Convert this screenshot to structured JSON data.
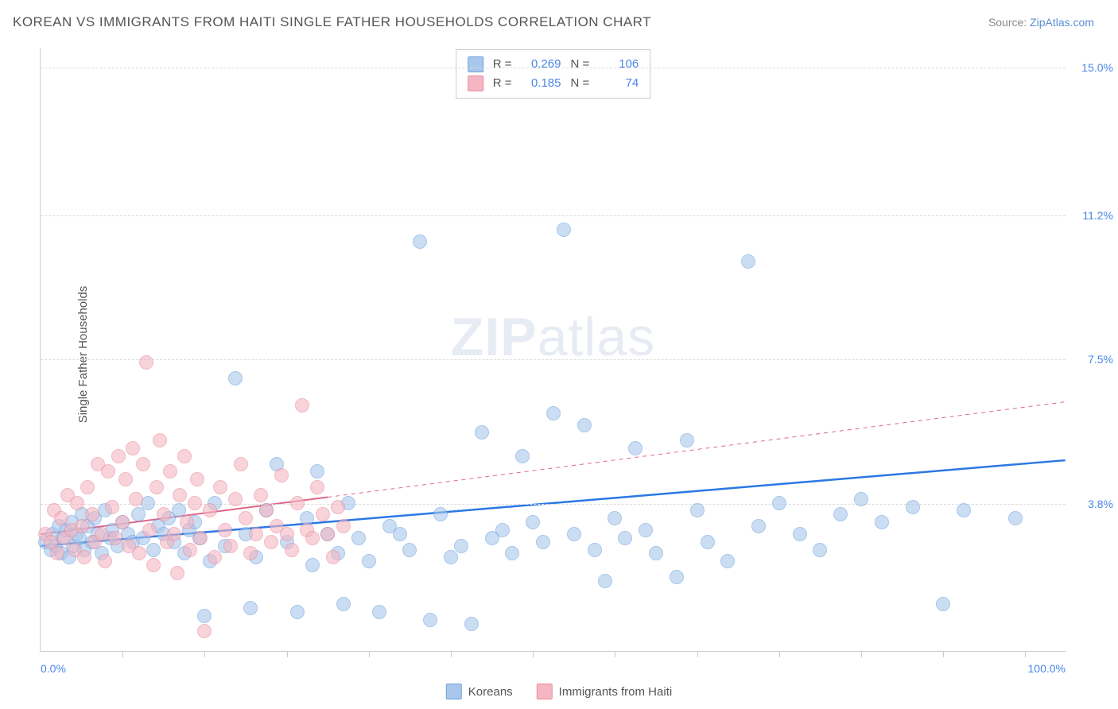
{
  "title": "KOREAN VS IMMIGRANTS FROM HAITI SINGLE FATHER HOUSEHOLDS CORRELATION CHART",
  "source_prefix": "Source: ",
  "source_link": "ZipAtlas.com",
  "ylabel": "Single Father Households",
  "watermark_zip": "ZIP",
  "watermark_atlas": "atlas",
  "chart": {
    "type": "scatter",
    "background_color": "#ffffff",
    "grid_color": "#dddddd",
    "xlim": [
      0,
      100
    ],
    "ylim": [
      0,
      15.5
    ],
    "x_min_label": "0.0%",
    "x_max_label": "100.0%",
    "xtick_positions": [
      8,
      16,
      24,
      32,
      40,
      48,
      56,
      64,
      72,
      80,
      88,
      96
    ],
    "yticks": [
      {
        "value": 3.8,
        "label": "3.8%"
      },
      {
        "value": 7.5,
        "label": "7.5%"
      },
      {
        "value": 11.2,
        "label": "11.2%"
      },
      {
        "value": 15.0,
        "label": "15.0%"
      }
    ],
    "ytick_color": "#4a86e8",
    "ytick_fontsize": 14,
    "marker_radius": 9,
    "marker_stroke_width": 1,
    "series": [
      {
        "name": "Koreans",
        "fill_color": "#a9c7ec",
        "stroke_color": "#6fa3dd",
        "fill_opacity": 0.6,
        "R_label": "R = ",
        "R_value": "0.269",
        "N_label": "N = ",
        "N_value": "106",
        "trend": {
          "x1": 0,
          "y1": 2.7,
          "x2": 100,
          "y2": 4.9,
          "color": "#2b78e4",
          "width": 2.5,
          "dash_after": 100
        },
        "points": [
          [
            0.5,
            2.8
          ],
          [
            1,
            2.6
          ],
          [
            1.2,
            3.0
          ],
          [
            1.5,
            2.7
          ],
          [
            1.8,
            3.2
          ],
          [
            2,
            2.5
          ],
          [
            2.2,
            2.9
          ],
          [
            2.5,
            3.1
          ],
          [
            2.8,
            2.4
          ],
          [
            3,
            3.3
          ],
          [
            3.2,
            2.7
          ],
          [
            3.5,
            3.0
          ],
          [
            3.8,
            2.9
          ],
          [
            4,
            3.5
          ],
          [
            4.3,
            2.6
          ],
          [
            4.6,
            3.2
          ],
          [
            5,
            2.8
          ],
          [
            5.3,
            3.4
          ],
          [
            5.6,
            3.0
          ],
          [
            6,
            2.5
          ],
          [
            6.3,
            3.6
          ],
          [
            6.8,
            2.9
          ],
          [
            7,
            3.1
          ],
          [
            7.5,
            2.7
          ],
          [
            8,
            3.3
          ],
          [
            8.5,
            3.0
          ],
          [
            9,
            2.8
          ],
          [
            9.5,
            3.5
          ],
          [
            10,
            2.9
          ],
          [
            10.5,
            3.8
          ],
          [
            11,
            2.6
          ],
          [
            11.5,
            3.2
          ],
          [
            12,
            3.0
          ],
          [
            12.5,
            3.4
          ],
          [
            13,
            2.8
          ],
          [
            13.5,
            3.6
          ],
          [
            14,
            2.5
          ],
          [
            14.5,
            3.1
          ],
          [
            15,
            3.3
          ],
          [
            15.5,
            2.9
          ],
          [
            16,
            0.9
          ],
          [
            16.5,
            2.3
          ],
          [
            17,
            3.8
          ],
          [
            18,
            2.7
          ],
          [
            19,
            7.0
          ],
          [
            20,
            3.0
          ],
          [
            20.5,
            1.1
          ],
          [
            21,
            2.4
          ],
          [
            22,
            3.6
          ],
          [
            23,
            4.8
          ],
          [
            24,
            2.8
          ],
          [
            25,
            1.0
          ],
          [
            26,
            3.4
          ],
          [
            26.5,
            2.2
          ],
          [
            27,
            4.6
          ],
          [
            28,
            3.0
          ],
          [
            29,
            2.5
          ],
          [
            29.5,
            1.2
          ],
          [
            30,
            3.8
          ],
          [
            31,
            2.9
          ],
          [
            32,
            2.3
          ],
          [
            33,
            1.0
          ],
          [
            34,
            3.2
          ],
          [
            35,
            3.0
          ],
          [
            36,
            2.6
          ],
          [
            37,
            10.5
          ],
          [
            38,
            0.8
          ],
          [
            39,
            3.5
          ],
          [
            40,
            2.4
          ],
          [
            41,
            2.7
          ],
          [
            42,
            0.7
          ],
          [
            43,
            5.6
          ],
          [
            44,
            2.9
          ],
          [
            45,
            3.1
          ],
          [
            46,
            2.5
          ],
          [
            47,
            5.0
          ],
          [
            48,
            3.3
          ],
          [
            49,
            2.8
          ],
          [
            50,
            6.1
          ],
          [
            51,
            10.8
          ],
          [
            52,
            3.0
          ],
          [
            53,
            5.8
          ],
          [
            54,
            2.6
          ],
          [
            55,
            1.8
          ],
          [
            56,
            3.4
          ],
          [
            57,
            2.9
          ],
          [
            58,
            5.2
          ],
          [
            59,
            3.1
          ],
          [
            60,
            2.5
          ],
          [
            62,
            1.9
          ],
          [
            63,
            5.4
          ],
          [
            64,
            3.6
          ],
          [
            65,
            2.8
          ],
          [
            67,
            2.3
          ],
          [
            69,
            10.0
          ],
          [
            70,
            3.2
          ],
          [
            72,
            3.8
          ],
          [
            74,
            3.0
          ],
          [
            76,
            2.6
          ],
          [
            78,
            3.5
          ],
          [
            80,
            3.9
          ],
          [
            82,
            3.3
          ],
          [
            85,
            3.7
          ],
          [
            88,
            1.2
          ],
          [
            90,
            3.6
          ],
          [
            95,
            3.4
          ]
        ]
      },
      {
        "name": "Immigrants from Haiti",
        "fill_color": "#f4b6c2",
        "stroke_color": "#e88ba0",
        "fill_opacity": 0.6,
        "R_label": "R = ",
        "R_value": "0.185",
        "N_label": "N = ",
        "N_value": "74",
        "trend": {
          "x1": 0,
          "y1": 3.0,
          "x2": 100,
          "y2": 6.4,
          "color": "#e06688",
          "width": 2,
          "dash_after": 28
        },
        "points": [
          [
            0.5,
            3.0
          ],
          [
            1,
            2.8
          ],
          [
            1.3,
            3.6
          ],
          [
            1.6,
            2.5
          ],
          [
            2,
            3.4
          ],
          [
            2.3,
            2.9
          ],
          [
            2.6,
            4.0
          ],
          [
            3,
            3.1
          ],
          [
            3.3,
            2.6
          ],
          [
            3.6,
            3.8
          ],
          [
            4,
            3.2
          ],
          [
            4.3,
            2.4
          ],
          [
            4.6,
            4.2
          ],
          [
            5,
            3.5
          ],
          [
            5.3,
            2.8
          ],
          [
            5.6,
            4.8
          ],
          [
            6,
            3.0
          ],
          [
            6.3,
            2.3
          ],
          [
            6.6,
            4.6
          ],
          [
            7,
            3.7
          ],
          [
            7.3,
            2.9
          ],
          [
            7.6,
            5.0
          ],
          [
            8,
            3.3
          ],
          [
            8.3,
            4.4
          ],
          [
            8.6,
            2.7
          ],
          [
            9,
            5.2
          ],
          [
            9.3,
            3.9
          ],
          [
            9.6,
            2.5
          ],
          [
            10,
            4.8
          ],
          [
            10.3,
            7.4
          ],
          [
            10.6,
            3.1
          ],
          [
            11,
            2.2
          ],
          [
            11.3,
            4.2
          ],
          [
            11.6,
            5.4
          ],
          [
            12,
            3.5
          ],
          [
            12.3,
            2.8
          ],
          [
            12.6,
            4.6
          ],
          [
            13,
            3.0
          ],
          [
            13.3,
            2.0
          ],
          [
            13.6,
            4.0
          ],
          [
            14,
            5.0
          ],
          [
            14.3,
            3.3
          ],
          [
            14.6,
            2.6
          ],
          [
            15,
            3.8
          ],
          [
            15.3,
            4.4
          ],
          [
            15.6,
            2.9
          ],
          [
            16,
            0.5
          ],
          [
            16.5,
            3.6
          ],
          [
            17,
            2.4
          ],
          [
            17.5,
            4.2
          ],
          [
            18,
            3.1
          ],
          [
            18.5,
            2.7
          ],
          [
            19,
            3.9
          ],
          [
            19.5,
            4.8
          ],
          [
            20,
            3.4
          ],
          [
            20.5,
            2.5
          ],
          [
            21,
            3.0
          ],
          [
            21.5,
            4.0
          ],
          [
            22,
            3.6
          ],
          [
            22.5,
            2.8
          ],
          [
            23,
            3.2
          ],
          [
            23.5,
            4.5
          ],
          [
            24,
            3.0
          ],
          [
            24.5,
            2.6
          ],
          [
            25,
            3.8
          ],
          [
            25.5,
            6.3
          ],
          [
            26,
            3.1
          ],
          [
            26.5,
            2.9
          ],
          [
            27,
            4.2
          ],
          [
            27.5,
            3.5
          ],
          [
            28,
            3.0
          ],
          [
            28.5,
            2.4
          ],
          [
            29,
            3.7
          ],
          [
            29.5,
            3.2
          ]
        ]
      }
    ]
  },
  "legend_bottom": {
    "items": [
      "Koreans",
      "Immigrants from Haiti"
    ]
  }
}
